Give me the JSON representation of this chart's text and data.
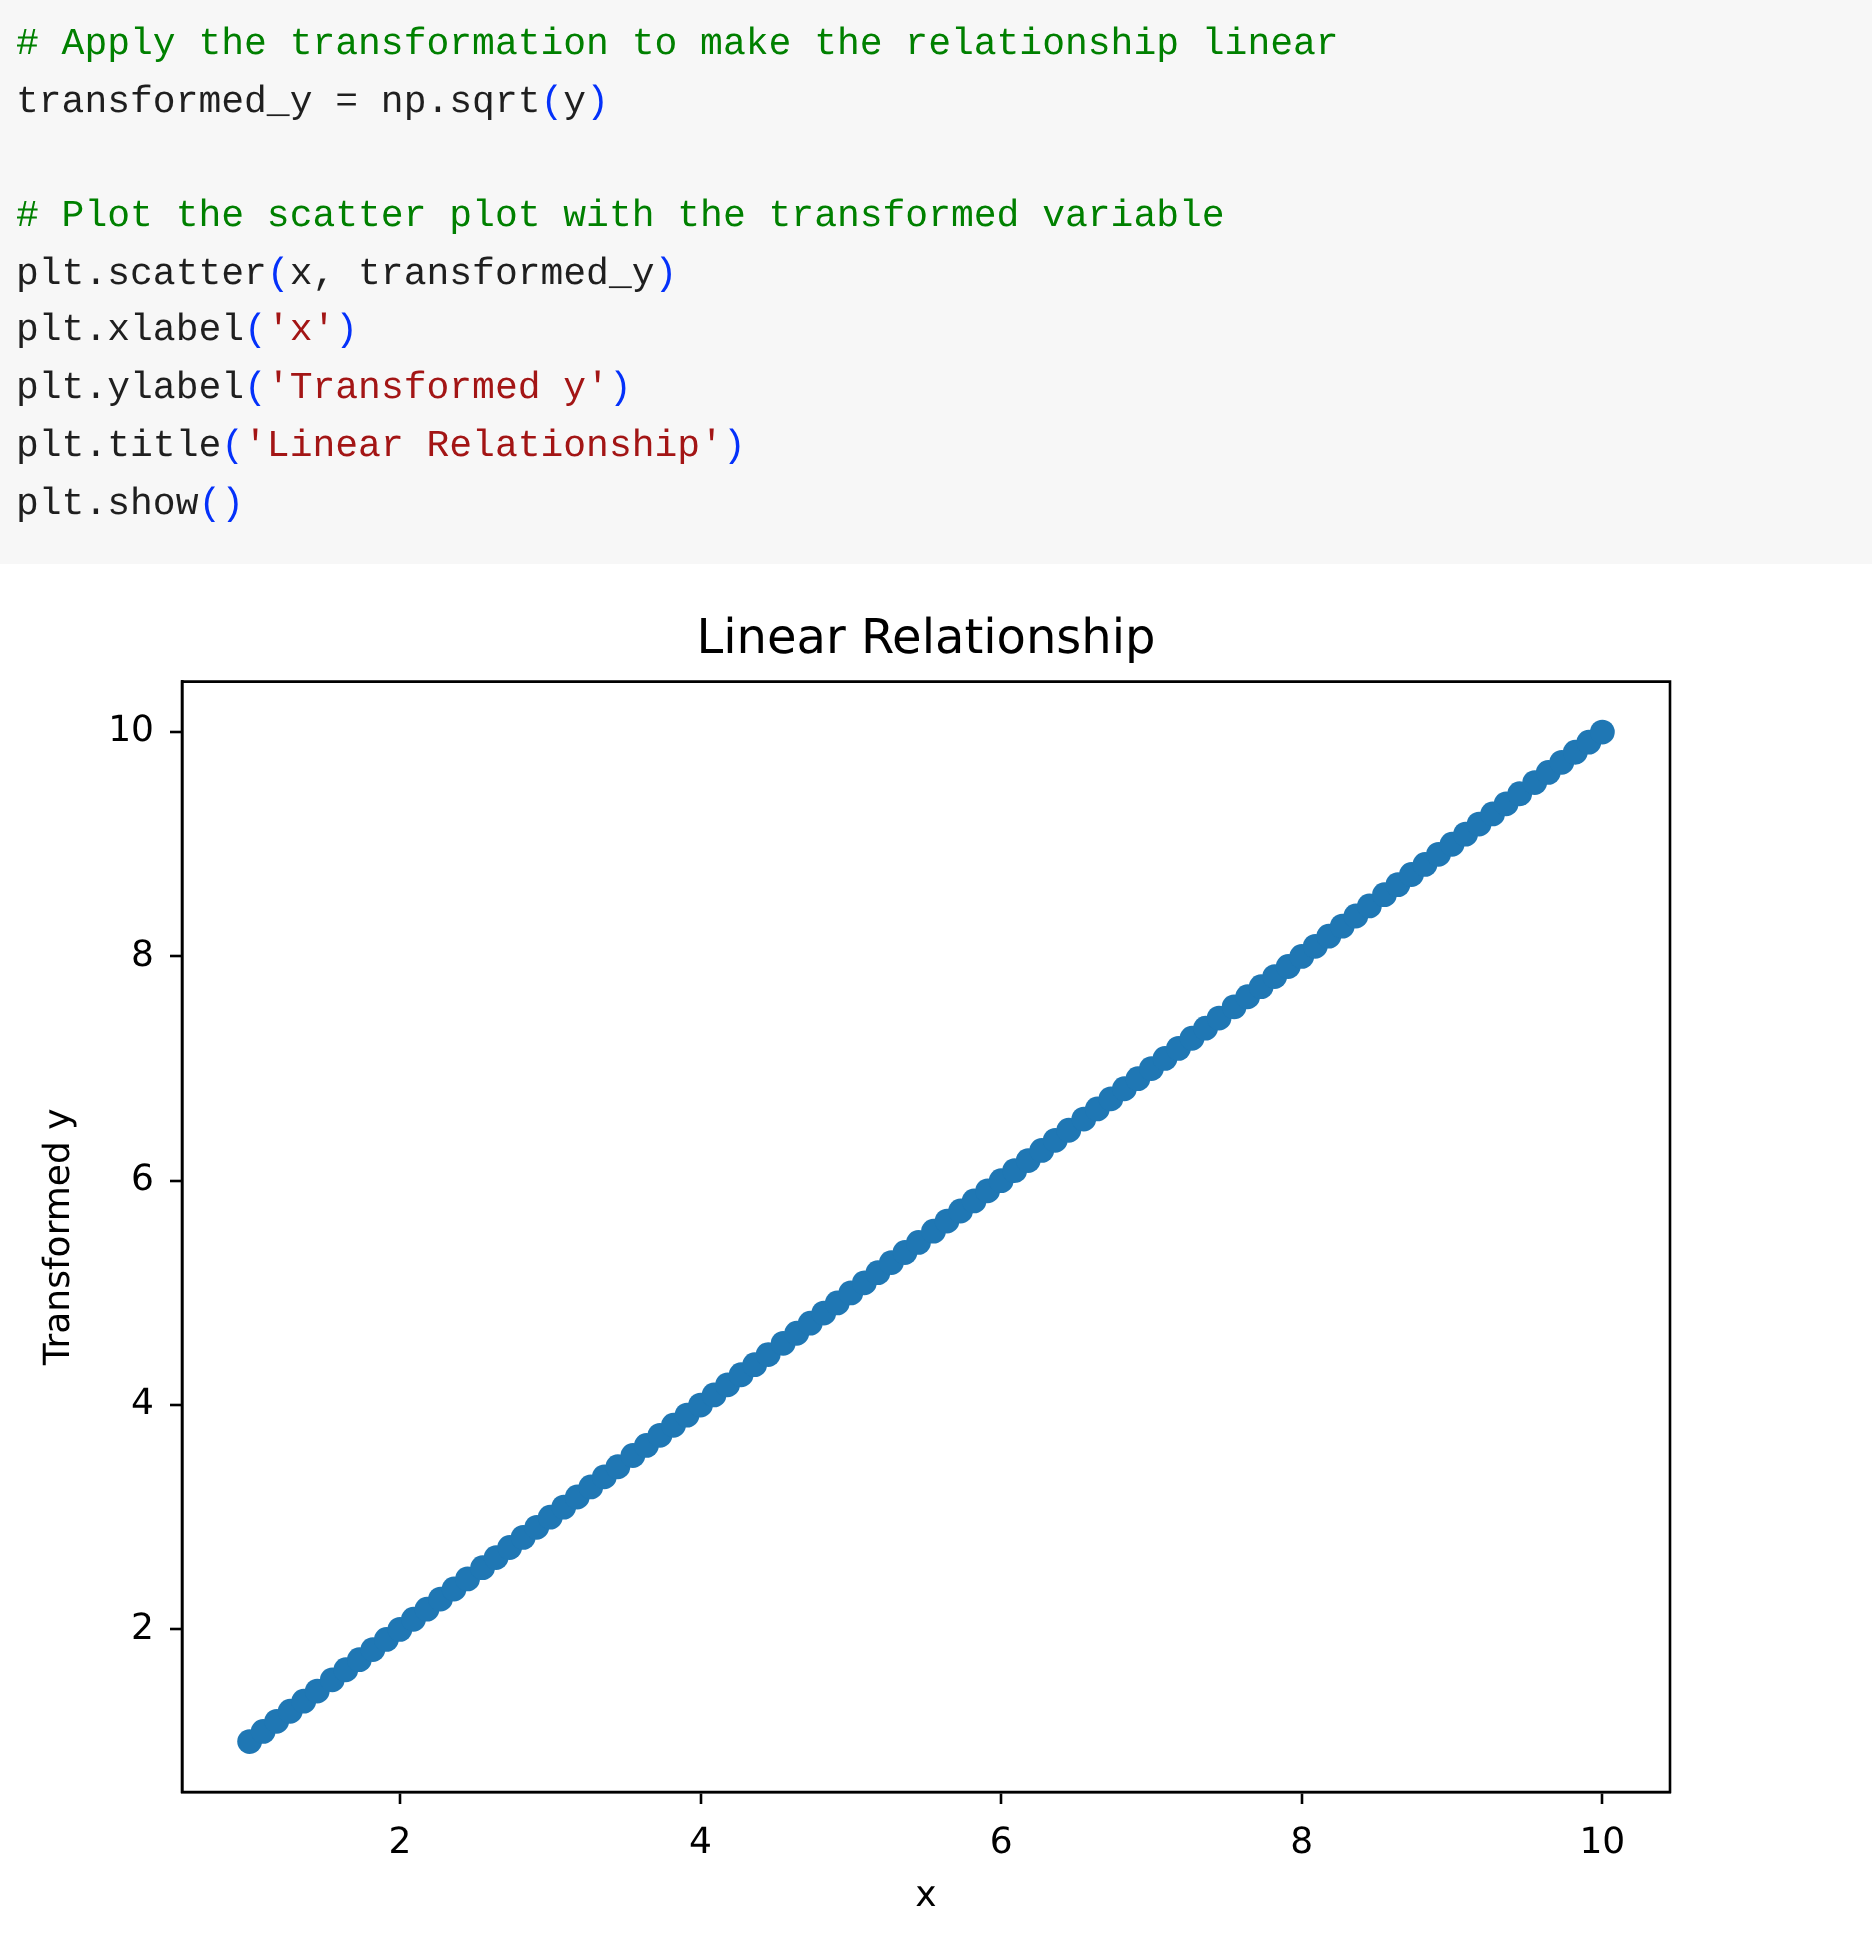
{
  "chart_data": {
    "type": "scatter",
    "title": "Linear Relationship",
    "xlabel": "x",
    "ylabel": "Transformed y",
    "annotations": [
      "# Apply the transformation to make the relationship linear\ntransformed_y = np.sqrt(y)\n\n# Plot the scatter plot with the transformed variable\nplt.scatter(x, transformed_y)\nplt.xlabel('x')\nplt.ylabel('Transformed y')\nplt.title('Linear Relationship')\nplt.show()"
    ],
    "x": [
      1,
      1.09,
      1.18,
      1.27,
      1.36,
      1.45,
      1.55,
      1.64,
      1.73,
      1.82,
      1.91,
      2,
      2.09,
      2.18,
      2.27,
      2.36,
      2.45,
      2.55,
      2.64,
      2.73,
      2.82,
      2.91,
      3,
      3.09,
      3.18,
      3.27,
      3.36,
      3.45,
      3.55,
      3.64,
      3.73,
      3.82,
      3.91,
      4,
      4.09,
      4.18,
      4.27,
      4.36,
      4.45,
      4.55,
      4.64,
      4.73,
      4.82,
      4.91,
      5,
      5.09,
      5.18,
      5.27,
      5.36,
      5.45,
      5.55,
      5.64,
      5.73,
      5.82,
      5.91,
      6,
      6.09,
      6.18,
      6.27,
      6.36,
      6.45,
      6.55,
      6.64,
      6.73,
      6.82,
      6.91,
      7,
      7.09,
      7.18,
      7.27,
      7.36,
      7.45,
      7.55,
      7.64,
      7.73,
      7.82,
      7.91,
      8,
      8.09,
      8.18,
      8.27,
      8.36,
      8.45,
      8.55,
      8.64,
      8.73,
      8.82,
      8.91,
      9,
      9.09,
      9.18,
      9.27,
      9.36,
      9.45,
      9.55,
      9.64,
      9.73,
      9.82,
      9.91,
      10
    ],
    "series": [
      {
        "color": "#1f77b4",
        "values": [
          1,
          1.09,
          1.18,
          1.27,
          1.36,
          1.45,
          1.55,
          1.64,
          1.73,
          1.82,
          1.91,
          2,
          2.09,
          2.18,
          2.27,
          2.36,
          2.45,
          2.55,
          2.64,
          2.73,
          2.82,
          2.91,
          3,
          3.09,
          3.18,
          3.27,
          3.36,
          3.45,
          3.55,
          3.64,
          3.73,
          3.82,
          3.91,
          4,
          4.09,
          4.18,
          4.27,
          4.36,
          4.45,
          4.55,
          4.64,
          4.73,
          4.82,
          4.91,
          5,
          5.09,
          5.18,
          5.27,
          5.36,
          5.45,
          5.55,
          5.64,
          5.73,
          5.82,
          5.91,
          6,
          6.09,
          6.18,
          6.27,
          6.36,
          6.45,
          6.55,
          6.64,
          6.73,
          6.82,
          6.91,
          7,
          7.09,
          7.18,
          7.27,
          7.36,
          7.45,
          7.55,
          7.64,
          7.73,
          7.82,
          7.91,
          8,
          8.09,
          8.18,
          8.27,
          8.36,
          8.45,
          8.55,
          8.64,
          8.73,
          8.82,
          8.91,
          9,
          9.09,
          9.18,
          9.27,
          9.36,
          9.45,
          9.55,
          9.64,
          9.73,
          9.82,
          9.91,
          10
        ]
      }
    ],
    "xlim": [
      0.55,
      10.45
    ],
    "ylim": [
      0.55,
      10.45
    ],
    "xticks": [
      2,
      4,
      6,
      8,
      10
    ],
    "yticks": [
      2,
      4,
      6,
      8,
      10
    ],
    "grid": false,
    "marker": "circle"
  }
}
